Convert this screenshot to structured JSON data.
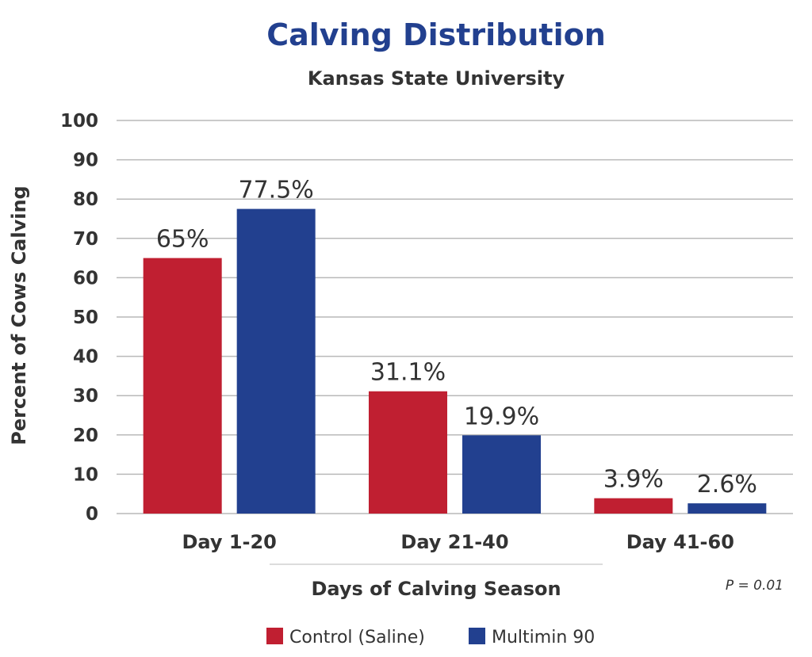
{
  "chart_data": {
    "type": "bar",
    "title": "Calving Distribution",
    "subtitle": "Kansas State University",
    "xlabel": "Days of Calving Season",
    "ylabel": "Percent of Cows Calving",
    "ylim": [
      0,
      100
    ],
    "yticks": [
      0,
      10,
      20,
      30,
      40,
      50,
      60,
      70,
      80,
      90,
      100
    ],
    "grid": true,
    "categories": [
      "Day 1-20",
      "Day 21-40",
      "Day 41-60"
    ],
    "series": [
      {
        "name": "Control (Saline)",
        "color": "#c01f31",
        "values": [
          65,
          31.1,
          3.9
        ],
        "labels": [
          "65%",
          "31.1%",
          "3.9%"
        ]
      },
      {
        "name": "Multimin 90",
        "color": "#22408f",
        "values": [
          77.5,
          19.9,
          2.6
        ],
        "labels": [
          "77.5%",
          "19.9%",
          "2.6%"
        ]
      }
    ],
    "annotation": "P = 0.01",
    "legend_position": "bottom",
    "title_color": "#22408f",
    "text_color": "#333333",
    "grid_color": "#b9b9b9"
  }
}
